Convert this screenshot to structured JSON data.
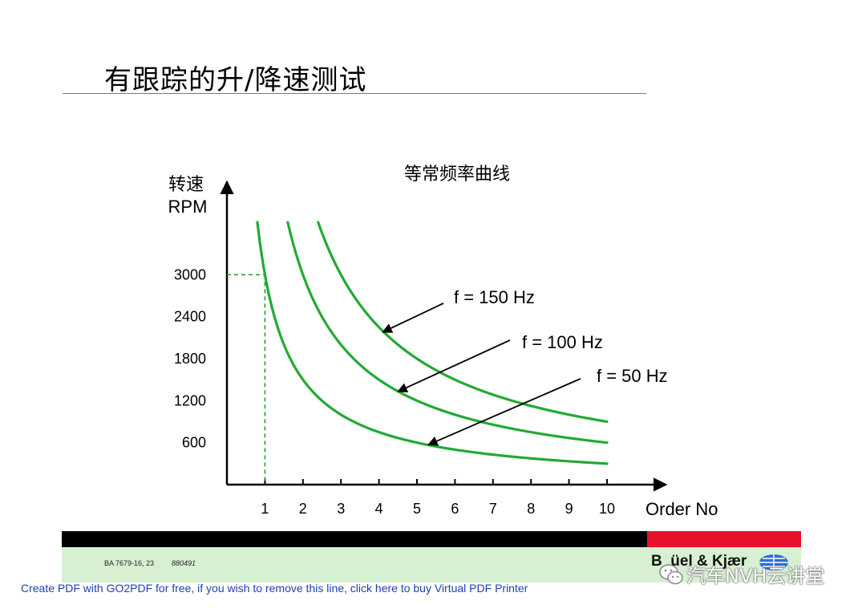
{
  "slide": {
    "title": "有跟踪的升/降速测试"
  },
  "chart_data": {
    "type": "line",
    "title": "等常频率曲线",
    "ylabel_line1": "转速",
    "ylabel_line2": "RPM",
    "xlabel": "Order No",
    "x_ticks": [
      1,
      2,
      3,
      4,
      5,
      6,
      7,
      8,
      9,
      10
    ],
    "y_ticks": [
      600,
      1200,
      1800,
      2400,
      3000
    ],
    "xlim": [
      0,
      11.3
    ],
    "ylim": [
      0,
      4100
    ],
    "grid": false,
    "series": [
      {
        "name": "f = 50 Hz",
        "frequency_hz": 50,
        "x": [
          0.8,
          1,
          1.5,
          2,
          3,
          4,
          5,
          6,
          7,
          8,
          9,
          10
        ],
        "y": [
          3750,
          3000,
          2000,
          1500,
          1000,
          750,
          600,
          500,
          429,
          375,
          333,
          300
        ]
      },
      {
        "name": "f = 100 Hz",
        "frequency_hz": 100,
        "x": [
          1.6,
          2,
          3,
          4,
          5,
          6,
          7,
          8,
          9,
          10
        ],
        "y": [
          3750,
          3000,
          2000,
          1500,
          1200,
          1000,
          857,
          750,
          667,
          600
        ]
      },
      {
        "name": "f = 150 Hz",
        "frequency_hz": 150,
        "x": [
          2.4,
          3,
          4,
          5,
          6,
          7,
          8,
          9,
          10
        ],
        "y": [
          3750,
          3000,
          2250,
          1800,
          1500,
          1286,
          1125,
          1000,
          900
        ]
      }
    ],
    "annotations": [
      {
        "label": "f = 150 Hz",
        "points_to": {
          "x": 4.1,
          "y": 2180
        }
      },
      {
        "label": "f = 100 Hz",
        "points_to": {
          "x": 4.5,
          "y": 1330
        }
      },
      {
        "label": "f = 50 Hz",
        "points_to": {
          "x": 5.3,
          "y": 570
        }
      }
    ],
    "reference_point": {
      "x": 1,
      "y": 3000
    },
    "colors": {
      "curve": "#22aa33",
      "reference": "#1a9a2a",
      "axis": "#000000"
    }
  },
  "footer": {
    "doc_code": "BA 7679-16, 23",
    "doc_number": "880491",
    "brand": "Brüel & Kjær",
    "brand_visible": "B  üel & Kjær",
    "wechat_label": "汽车NVH云讲堂",
    "watermark": "Create PDF with GO2PDF for free, if you wish to remove this line, click here to buy Virtual PDF Printer",
    "colors": {
      "black_bar": "#000000",
      "red_bar": "#e8112d",
      "green_band": "#d7f0d2",
      "watermark_text": "#1f3fb0"
    }
  }
}
